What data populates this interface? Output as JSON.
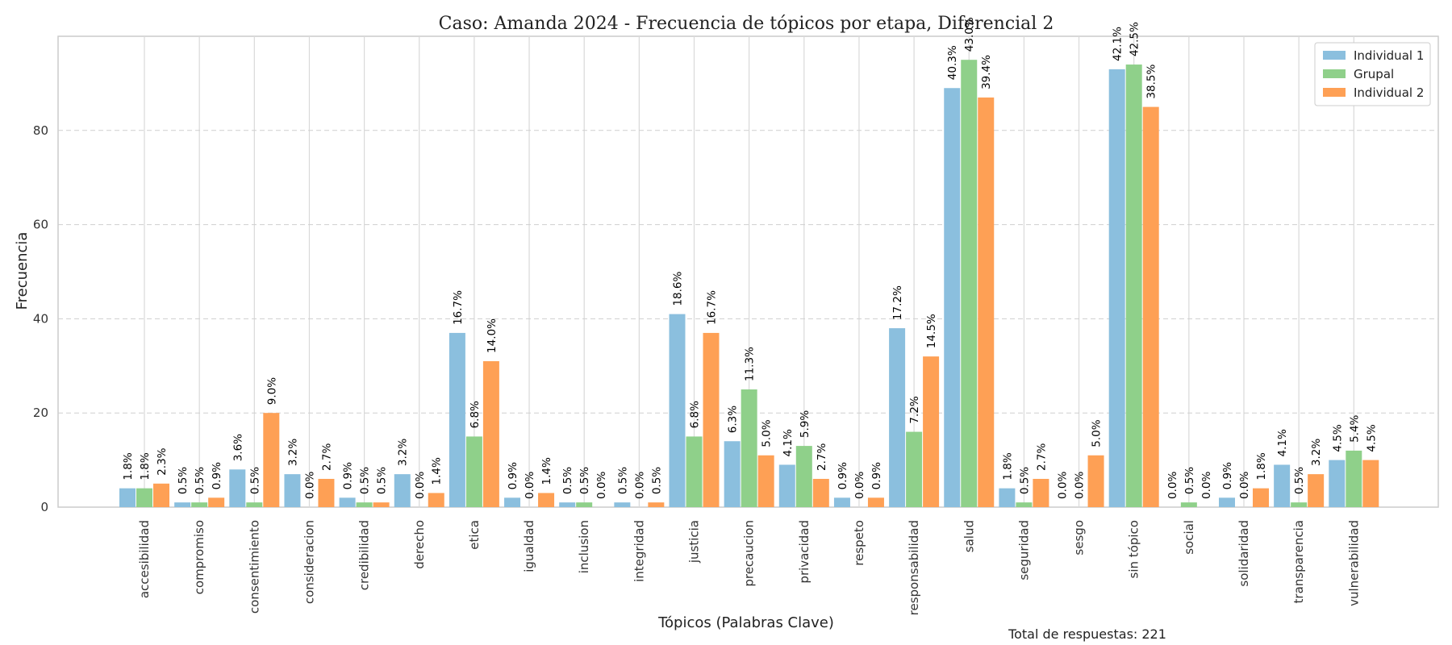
{
  "chart_data": {
    "type": "bar",
    "title": "Caso: Amanda 2024 - Frecuencia de tópicos por etapa, Diferencial 2",
    "xlabel": "Tópicos (Palabras Clave)",
    "ylabel": "Frecuencia",
    "ylim": [
      0,
      100
    ],
    "yticks": [
      0,
      20,
      40,
      60,
      80
    ],
    "grid": true,
    "legend_position": "top-right",
    "footnote": "Total de respuestas: 221",
    "categories": [
      "accesibilidad",
      "compromiso",
      "consentimiento",
      "consideracion",
      "credibilidad",
      "derecho",
      "etica",
      "igualdad",
      "inclusion",
      "integridad",
      "justicia",
      "precaucion",
      "privacidad",
      "respeto",
      "responsabilidad",
      "salud",
      "seguridad",
      "sesgo",
      "sin tópico",
      "social",
      "solidaridad",
      "transparencia",
      "vulnerabilidad"
    ],
    "series": [
      {
        "name": "Individual 1",
        "color": "#8bbfde",
        "values": [
          4,
          1,
          8,
          7,
          2,
          7,
          37,
          2,
          1,
          1,
          41,
          14,
          9,
          2,
          38,
          89,
          4,
          0,
          93,
          0,
          2,
          9,
          10
        ],
        "labels": [
          "1.8%",
          "0.5%",
          "3.6%",
          "3.2%",
          "0.9%",
          "3.2%",
          "16.7%",
          "0.9%",
          "0.5%",
          "0.5%",
          "18.6%",
          "6.3%",
          "4.1%",
          "0.9%",
          "17.2%",
          "40.3%",
          "1.8%",
          "0.0%",
          "42.1%",
          "0.0%",
          "0.9%",
          "4.1%",
          "4.5%"
        ]
      },
      {
        "name": "Grupal",
        "color": "#8fd08a",
        "values": [
          4,
          1,
          1,
          0,
          1,
          0,
          15,
          0,
          1,
          0,
          15,
          25,
          13,
          0,
          16,
          95,
          1,
          0,
          94,
          1,
          0,
          1,
          12
        ],
        "labels": [
          "1.8%",
          "0.5%",
          "0.5%",
          "0.0%",
          "0.5%",
          "0.0%",
          "6.8%",
          "0.0%",
          "0.5%",
          "0.0%",
          "6.8%",
          "11.3%",
          "5.9%",
          "0.0%",
          "7.2%",
          "43.0%",
          "0.5%",
          "0.0%",
          "42.5%",
          "0.5%",
          "0.0%",
          "0.5%",
          "5.4%"
        ]
      },
      {
        "name": "Individual 2",
        "color": "#fea055",
        "values": [
          5,
          2,
          20,
          6,
          1,
          3,
          31,
          3,
          0,
          1,
          37,
          11,
          6,
          2,
          32,
          87,
          6,
          11,
          85,
          0,
          4,
          7,
          10
        ],
        "labels": [
          "2.3%",
          "0.9%",
          "9.0%",
          "2.7%",
          "0.5%",
          "1.4%",
          "14.0%",
          "1.4%",
          "0.0%",
          "0.5%",
          "16.7%",
          "5.0%",
          "2.7%",
          "0.9%",
          "14.5%",
          "39.4%",
          "2.7%",
          "5.0%",
          "38.5%",
          "0.0%",
          "1.8%",
          "3.2%",
          "4.5%"
        ]
      }
    ]
  }
}
